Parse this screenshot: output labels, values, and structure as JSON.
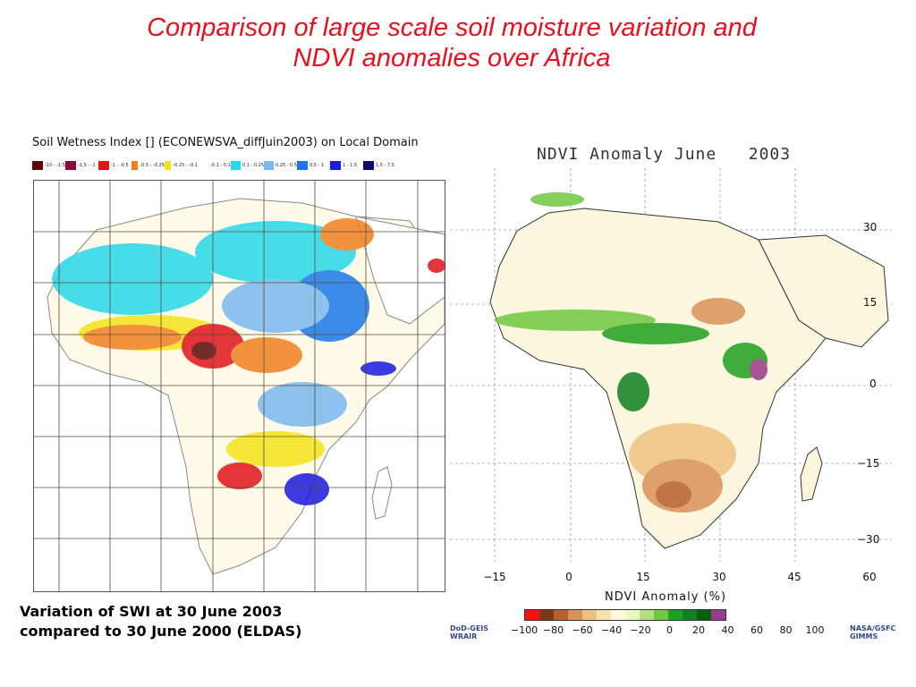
{
  "slide": {
    "title_line1": "Comparison of large scale soil moisture variation and",
    "title_line2": "NDVI anomalies over Africa"
  },
  "swi": {
    "title": "Soil Wetness Index [] (ECONEWSVA_diffJuin2003) on Local Domain",
    "legend": [
      {
        "color": "#5a0a0a",
        "label": "-10 - -1.5"
      },
      {
        "color": "#8b0a3c",
        "label": "-1.5 - -1"
      },
      {
        "color": "#e0141a",
        "label": "-1 - -0.5"
      },
      {
        "color": "#f08020",
        "label": "-0.5 - -0.25"
      },
      {
        "color": "#f5e31a",
        "label": "-0.25 - -0.1"
      },
      {
        "color": "#ffffff",
        "label": "-0.1 - 0.1"
      },
      {
        "color": "#28d8e8",
        "label": "0.1 - 0.25"
      },
      {
        "color": "#7ab8f0",
        "label": "0.25 - 0.5"
      },
      {
        "color": "#1a78e8",
        "label": "0.5 - 1"
      },
      {
        "color": "#1a1ae0",
        "label": "1 - 1.5"
      },
      {
        "color": "#0a0a70",
        "label": "1.5 - 7.5"
      }
    ],
    "caption_line1": "Variation of SWI at 30 June 2003",
    "caption_line2": "compared to 30 June 2000 (ELDAS)"
  },
  "ndvi": {
    "title": "NDVI Anomaly June   2003",
    "lat_ticks": [
      "30",
      "15",
      "0",
      "−15",
      "−30"
    ],
    "lon_ticks": [
      "−15",
      "0",
      "15",
      "30",
      "45",
      "60"
    ],
    "axis_label": "NDVI Anomaly (%)",
    "colorbar_colors": [
      "#ff1010",
      "#7a3a1a",
      "#b5602e",
      "#d9935a",
      "#f0c080",
      "#f8e0b0",
      "#fff8e0",
      "#e8f8c0",
      "#b0e080",
      "#70c840",
      "#20a020",
      "#108020",
      "#0a6010",
      "#9a3a8a"
    ],
    "colorbar_ticks": [
      "−100",
      "−80",
      "−60",
      "−40",
      "−20",
      "0",
      "20",
      "40",
      "60",
      "80",
      "100"
    ],
    "credit_left_1": "DoD-GEIS",
    "credit_left_2": "WRAIR",
    "credit_right_1": "NASA/GSFC",
    "credit_right_2": "GIMMS"
  }
}
